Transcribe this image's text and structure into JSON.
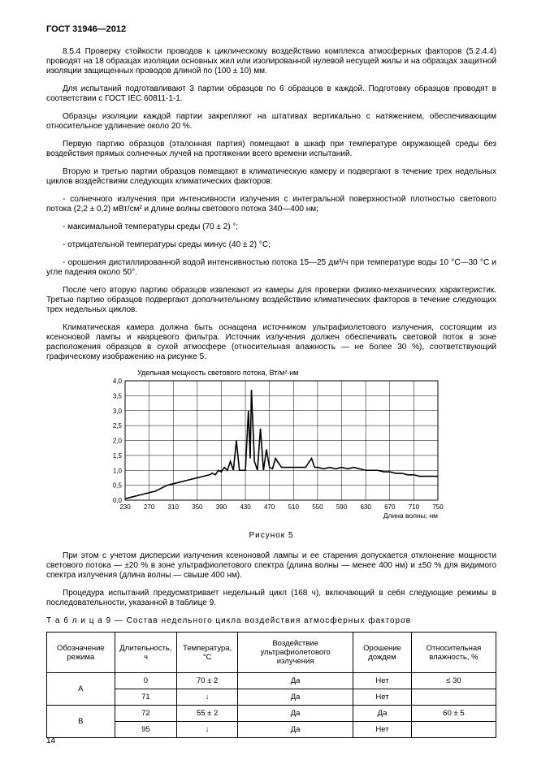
{
  "header": "ГОСТ  31946—2012",
  "paragraphs": [
    "8.5.4  Проверку стойкости проводов к циклическому воздействию комплекса атмосферных факторов (5.2.4.4) проводят на 18 образцах изоляции основных жил или изолированной нулевой несущей жилы и на образцах защитной изоляции защищенных проводов длиной по (100 ± 10) мм.",
    "Для испытаний подготавливают 3 партии образцов по 6 образцов в каждой. Подготовку образцов проводят в соответствии с ГОСТ IEC 60811-1-1.",
    "Образцы изоляции каждой партии закрепляют на штативах вертикально с натяжением, обеспечивающим относительное удлинение около 20 %.",
    "Первую партию образцов (эталонная партия) помещают в шкаф при температуре окружающей среды без воздействия прямых солнечных лучей на протяжении всего времени испытаний.",
    "Вторую и третью партии образцов помещают в климатическую камеру и подвергают в течение трех недельных циклов воздействиям следующих климатических факторов:",
    "- солнечного излучения при интенсивности излучения с интегральной поверхностной плотностью светового потока (2,2 ± 0,2) мВт/см² и длине волны светового потока 340—400 нм;",
    "- максимальной температуры среды (70 ± 2) °;",
    "- отрицательной температуры среды минус (40 ± 2) °С;",
    "- орошения дистиллированной водой интенсивностью потока 15—25 дм³/ч при температуре воды 10 °С—30 °С и угле падения около 50°.",
    "После чего вторую партию образцов извлекают из камеры для проверки физико-механических характеристик. Третью партию образцов подвергают дополнительному воздействию климатических факторов в течение следующих трех недельных циклов.",
    "Климатическая камера должна быть оснащена источником ультрафиолетового излучения, состоящим из ксеноновой лампы и кварцевого фильтра. Источник излучения должен обеспечивать световой поток в зоне расположения образцов в сухой атмосфере (относительная влажность — не более 30 %), соответствующий графическому изображению на рисунке 5."
  ],
  "chart": {
    "title": "Удельная мощность светового потока, Вт/м²·нм",
    "caption": "Рисунок 5",
    "xlabel": "Длина волны, нм",
    "xlim": [
      230,
      750
    ],
    "ylim": [
      0,
      4.0
    ],
    "xticks": [
      230,
      270,
      310,
      350,
      390,
      430,
      470,
      510,
      550,
      590,
      630,
      670,
      710,
      750
    ],
    "yticks": [
      0,
      0.5,
      1.0,
      1.5,
      2.0,
      2.5,
      3.0,
      3.5,
      4.0
    ],
    "line_color": "#000000",
    "grid_color": "#000000",
    "background_color": "#ffffff",
    "data": [
      [
        230,
        0.05
      ],
      [
        240,
        0.1
      ],
      [
        250,
        0.15
      ],
      [
        260,
        0.2
      ],
      [
        270,
        0.25
      ],
      [
        280,
        0.3
      ],
      [
        290,
        0.4
      ],
      [
        300,
        0.5
      ],
      [
        310,
        0.55
      ],
      [
        320,
        0.6
      ],
      [
        330,
        0.65
      ],
      [
        340,
        0.7
      ],
      [
        350,
        0.75
      ],
      [
        360,
        0.8
      ],
      [
        370,
        0.85
      ],
      [
        375,
        0.9
      ],
      [
        380,
        0.85
      ],
      [
        385,
        1.0
      ],
      [
        390,
        0.95
      ],
      [
        395,
        1.1
      ],
      [
        400,
        1.0
      ],
      [
        405,
        1.3
      ],
      [
        410,
        1.0
      ],
      [
        415,
        2.0
      ],
      [
        420,
        1.0
      ],
      [
        425,
        1.0
      ],
      [
        430,
        1.0
      ],
      [
        435,
        3.0
      ],
      [
        438,
        1.4
      ],
      [
        440,
        3.7
      ],
      [
        445,
        1.3
      ],
      [
        450,
        1.0
      ],
      [
        455,
        2.4
      ],
      [
        460,
        1.0
      ],
      [
        465,
        1.7
      ],
      [
        470,
        1.1
      ],
      [
        475,
        1.05
      ],
      [
        480,
        1.4
      ],
      [
        490,
        1.1
      ],
      [
        500,
        1.1
      ],
      [
        510,
        1.1
      ],
      [
        520,
        1.1
      ],
      [
        530,
        1.1
      ],
      [
        540,
        1.4
      ],
      [
        545,
        1.1
      ],
      [
        550,
        1.1
      ],
      [
        560,
        1.05
      ],
      [
        570,
        1.1
      ],
      [
        580,
        1.05
      ],
      [
        590,
        1.1
      ],
      [
        600,
        1.05
      ],
      [
        610,
        1.1
      ],
      [
        620,
        1.05
      ],
      [
        630,
        1.0
      ],
      [
        640,
        1.0
      ],
      [
        650,
        1.0
      ],
      [
        660,
        0.95
      ],
      [
        670,
        0.95
      ],
      [
        680,
        0.9
      ],
      [
        690,
        0.9
      ],
      [
        700,
        0.85
      ],
      [
        710,
        0.85
      ],
      [
        720,
        0.8
      ],
      [
        730,
        0.8
      ],
      [
        740,
        0.8
      ],
      [
        750,
        0.8
      ]
    ]
  },
  "paragraphs2": [
    "При этом с учетом дисперсии излучения ксеноновой лампы и ее старения допускается отклонение мощности светового потока —  ±20 % в зоне ультрафиолетового спектра (длина волны — менее 400 нм) и ±50 % для видимого спектра излучения (длина волны — свыше 400 нм).",
    "Процедура испытаний предусматривает недельный цикл (168 ч), включающий в себя следующие режимы в последовательности, указанной в таблице 9."
  ],
  "table": {
    "title": "Т а б л и ц а  9 — Состав недельного цикла воздействия атмосферных факторов",
    "columns": [
      "Обозначение режима",
      "Длительность, ч",
      "Температура, °С",
      "Воздействие ультрафиолетового излучения",
      "Орошение дождем",
      "Относительная влажность, %"
    ],
    "rows": [
      {
        "mode": "А",
        "span": 2,
        "cells": [
          [
            "0",
            "70 ± 2",
            "Да",
            "Нет",
            "≤ 30"
          ],
          [
            "71",
            "↓",
            "Да",
            "Нет",
            ""
          ]
        ]
      },
      {
        "mode": "B",
        "span": 2,
        "cells": [
          [
            "72",
            "55 ± 2",
            "Да",
            "Да",
            "60 ± 5"
          ],
          [
            "95",
            "↓",
            "Да",
            "Нет",
            ""
          ]
        ]
      }
    ]
  },
  "page_number": "14"
}
